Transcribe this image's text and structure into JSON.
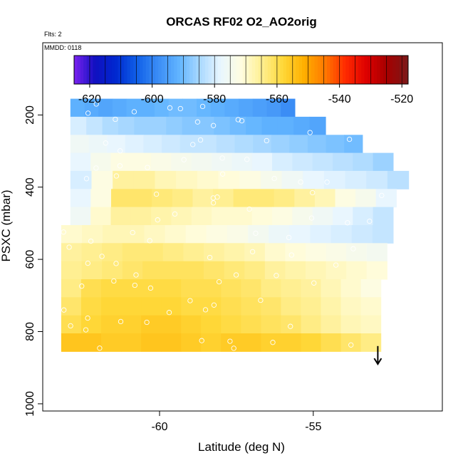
{
  "chart_data": {
    "type": "heatmap",
    "title": "ORCAS RF02 O2_AO2orig",
    "notes": [
      "Flts: 2",
      "MMDD: 0118"
    ],
    "xlabel": "Latitude (deg N)",
    "ylabel": "PSXC (mbar)",
    "xlim": [
      -63.8,
      -50.8
    ],
    "ylim": [
      1020,
      0
    ],
    "x_ticks": [
      -60,
      -55
    ],
    "y_ticks": [
      200,
      400,
      600,
      800,
      1000
    ],
    "colorbar": {
      "min": -625,
      "max": -518,
      "ticks": [
        -620,
        -600,
        -580,
        -560,
        -540,
        -520
      ],
      "colors": [
        "#7b22f0",
        "#1010c0",
        "#0028d0",
        "#1060e8",
        "#3a8cf5",
        "#60b4ff",
        "#a8d8ff",
        "#e8f6ff",
        "#fffde0",
        "#ffef90",
        "#ffd838",
        "#ffb000",
        "#ff7a00",
        "#ff2a00",
        "#dd0000",
        "#a50000",
        "#7a1a1a"
      ]
    },
    "rows": [
      {
        "p": 180,
        "x0": -62.9,
        "x1": -55.6,
        "v": [
          -592,
          -593,
          -594,
          -593,
          -592,
          -592,
          -591,
          -590,
          -590,
          -591,
          -592,
          -593,
          -594,
          -595,
          -596,
          -598
        ]
      },
      {
        "p": 230,
        "x0": -62.9,
        "x1": -54.6,
        "v": [
          -580,
          -582,
          -584,
          -585,
          -586,
          -586,
          -587,
          -588,
          -588,
          -589,
          -590,
          -591,
          -592,
          -592,
          -593,
          -594
        ]
      },
      {
        "p": 280,
        "x0": -62.9,
        "x1": -53.4,
        "v": [
          -576,
          -577,
          -578,
          -579,
          -580,
          -581,
          -582,
          -582,
          -583,
          -584,
          -585,
          -586,
          -587,
          -588,
          -589,
          -590
        ]
      },
      {
        "p": 330,
        "x0": -62.9,
        "x1": -52.4,
        "v": [
          -578,
          -574,
          -572,
          -572,
          -573,
          -574,
          -575,
          -576,
          -577,
          -578,
          -580,
          -581,
          -582,
          -583,
          -584,
          -586
        ]
      },
      {
        "p": 380,
        "x0": -62.9,
        "x1": -51.9,
        "v": [
          -580,
          -572,
          -566,
          -566,
          -568,
          -569,
          -570,
          -571,
          -572,
          -574,
          -576,
          -578,
          -579,
          -580,
          -581,
          -583
        ]
      },
      {
        "p": 430,
        "x0": -62.9,
        "x1": -52.3,
        "v": [
          -578,
          -572,
          -562,
          -562,
          -563,
          -564,
          -566,
          -565,
          -563,
          -563,
          -564,
          -566,
          -568,
          -572,
          -574,
          -578
        ]
      },
      {
        "p": 480,
        "x0": -62.9,
        "x1": -52.4,
        "v": [
          -576,
          -570,
          -566,
          -566,
          -567,
          -568,
          -569,
          -570,
          -570,
          -571,
          -572,
          -574,
          -576,
          -578,
          -580,
          -582
        ]
      },
      {
        "p": 530,
        "x0": -63.2,
        "x1": -52.4,
        "v": [
          -570,
          -569,
          -568,
          -568,
          -569,
          -570,
          -571,
          -572,
          -573,
          -575,
          -577,
          -578,
          -579,
          -580,
          -581,
          -582
        ]
      },
      {
        "p": 580,
        "x0": -63.2,
        "x1": -52.6,
        "v": [
          -566,
          -565,
          -564,
          -563,
          -563,
          -564,
          -565,
          -566,
          -567,
          -568,
          -570,
          -571,
          -572,
          -573,
          -574,
          -575
        ]
      },
      {
        "p": 630,
        "x0": -63.2,
        "x1": -52.6,
        "v": [
          -565,
          -564,
          -563,
          -562,
          -561,
          -561,
          -561,
          -562,
          -563,
          -564,
          -566,
          -567,
          -568,
          -569,
          -570,
          -571
        ]
      },
      {
        "p": 680,
        "x0": -63.2,
        "x1": -52.8,
        "v": [
          -564,
          -560,
          -559,
          -559,
          -559,
          -559,
          -560,
          -560,
          -561,
          -562,
          -564,
          -565,
          -566,
          -568,
          -570,
          -572
        ]
      },
      {
        "p": 730,
        "x0": -63.2,
        "x1": -52.8,
        "v": [
          -562,
          -559,
          -558,
          -558,
          -558,
          -558,
          -559,
          -559,
          -560,
          -561,
          -562,
          -564,
          -565,
          -567,
          -569,
          -570
        ]
      },
      {
        "p": 780,
        "x0": -63.2,
        "x1": -52.8,
        "v": [
          -560,
          -558,
          -557,
          -557,
          -556,
          -556,
          -557,
          -558,
          -559,
          -560,
          -561,
          -562,
          -564,
          -566,
          -568,
          -569
        ]
      },
      {
        "p": 830,
        "x0": -63.2,
        "x1": -52.8,
        "v": [
          -555,
          -555,
          -556,
          -556,
          -555,
          -555,
          -556,
          -557,
          -556,
          -556,
          -557,
          -557,
          -558,
          -560,
          -562,
          -564
        ]
      }
    ],
    "annotations": [
      {
        "type": "arrow",
        "x": -52.9,
        "from_p": 840,
        "to_p": 890
      }
    ]
  }
}
